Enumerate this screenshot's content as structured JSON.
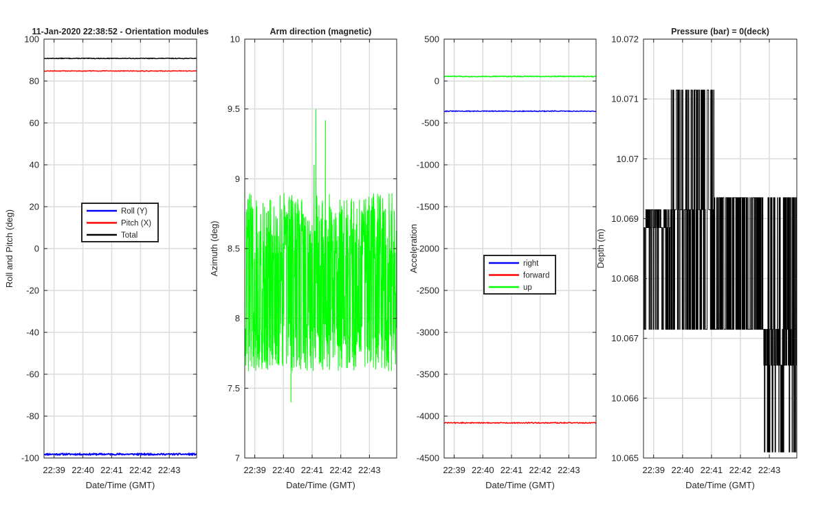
{
  "chart_data": [
    {
      "type": "line",
      "title": "11-Jan-2020 22:38:52 - Orientation modules",
      "xlabel": "Date/Time (GMT)",
      "ylabel": "Roll and Pitch (deg)",
      "xlim": [
        22.65,
        27.95
      ],
      "ylim": [
        -100,
        100
      ],
      "xticks": [
        {
          "v": 23,
          "label": "22:39"
        },
        {
          "v": 24,
          "label": "22:40"
        },
        {
          "v": 25,
          "label": "22:41"
        },
        {
          "v": 26,
          "label": "22:42"
        },
        {
          "v": 27,
          "label": "22:43"
        }
      ],
      "yticks": [
        {
          "v": -100,
          "label": "-100"
        },
        {
          "v": -80,
          "label": "-80"
        },
        {
          "v": -60,
          "label": "-60"
        },
        {
          "v": -40,
          "label": "-40"
        },
        {
          "v": -20,
          "label": "-20"
        },
        {
          "v": 0,
          "label": "0"
        },
        {
          "v": 20,
          "label": "20"
        },
        {
          "v": 40,
          "label": "40"
        },
        {
          "v": 60,
          "label": "60"
        },
        {
          "v": 80,
          "label": "80"
        },
        {
          "v": 100,
          "label": "100"
        }
      ],
      "grid": true,
      "legend": {
        "position": "center",
        "entries": [
          {
            "label": "Roll (Y)",
            "color": "#0000ff"
          },
          {
            "label": "Pitch (X)",
            "color": "#ff0000"
          },
          {
            "label": "Total",
            "color": "#000000"
          }
        ]
      },
      "series": [
        {
          "name": "Roll (Y)",
          "color": "#0000ff",
          "mode": "flat",
          "value": -98.2,
          "noise": 0.35,
          "seed": 11,
          "width": 2
        },
        {
          "name": "Pitch (X)",
          "color": "#ff0000",
          "mode": "flat",
          "value": 84.8,
          "noise": 0.15,
          "seed": 12,
          "width": 1.5
        },
        {
          "name": "Total",
          "color": "#000000",
          "mode": "flat",
          "value": 90.8,
          "noise": 0.15,
          "seed": 13,
          "width": 1.5
        }
      ]
    },
    {
      "type": "line",
      "title": "Arm direction (magnetic)",
      "xlabel": "Date/Time (GMT)",
      "ylabel": "Azimuth (deg)",
      "xlim": [
        22.65,
        27.95
      ],
      "ylim": [
        7,
        10
      ],
      "xticks": [
        {
          "v": 23,
          "label": "22:39"
        },
        {
          "v": 24,
          "label": "22:40"
        },
        {
          "v": 25,
          "label": "22:41"
        },
        {
          "v": 26,
          "label": "22:42"
        },
        {
          "v": 27,
          "label": "22:43"
        }
      ],
      "yticks": [
        {
          "v": 7,
          "label": "7"
        },
        {
          "v": 7.5,
          "label": "7.5"
        },
        {
          "v": 8,
          "label": "8"
        },
        {
          "v": 8.5,
          "label": "8.5"
        },
        {
          "v": 9,
          "label": "9"
        },
        {
          "v": 9.5,
          "label": "9.5"
        },
        {
          "v": 10,
          "label": "10"
        }
      ],
      "grid": true,
      "legend": null,
      "series": [
        {
          "name": "Azimuth",
          "color": "#00ff00",
          "mode": "noisy",
          "lo": 7.62,
          "hi": 8.9,
          "mid": 8.25,
          "spikes": [
            {
              "x": 25.12,
              "v": 9.5
            },
            {
              "x": 25.45,
              "v": 9.42
            },
            {
              "x": 24.25,
              "v": 7.4
            },
            {
              "x": 25.05,
              "v": 9.1
            }
          ],
          "n": 700,
          "seed": 21,
          "width": 1
        }
      ]
    },
    {
      "type": "line",
      "title": "",
      "xlabel": "Date/Time (GMT)",
      "ylabel": "Acceleration",
      "xlim": [
        22.65,
        27.95
      ],
      "ylim": [
        -4500,
        500
      ],
      "xticks": [
        {
          "v": 23,
          "label": "22:39"
        },
        {
          "v": 24,
          "label": "22:40"
        },
        {
          "v": 25,
          "label": "22:41"
        },
        {
          "v": 26,
          "label": "22:42"
        },
        {
          "v": 27,
          "label": "22:43"
        }
      ],
      "yticks": [
        {
          "v": -4500,
          "label": "-4500"
        },
        {
          "v": -4000,
          "label": "-4000"
        },
        {
          "v": -3500,
          "label": "-3500"
        },
        {
          "v": -3000,
          "label": "-3000"
        },
        {
          "v": -2500,
          "label": "-2500"
        },
        {
          "v": -2000,
          "label": "-2000"
        },
        {
          "v": -1500,
          "label": "-1500"
        },
        {
          "v": -1000,
          "label": "-1000"
        },
        {
          "v": -500,
          "label": "-500"
        },
        {
          "v": 0,
          "label": "0"
        },
        {
          "v": 500,
          "label": "500"
        }
      ],
      "grid": true,
      "legend": {
        "position": "center-right",
        "entries": [
          {
            "label": "right",
            "color": "#0000ff"
          },
          {
            "label": "forward",
            "color": "#ff0000"
          },
          {
            "label": "up",
            "color": "#00ff00"
          }
        ]
      },
      "series": [
        {
          "name": "right",
          "color": "#0000ff",
          "mode": "flat",
          "value": -360,
          "noise": 5,
          "seed": 31,
          "width": 1.5
        },
        {
          "name": "forward",
          "color": "#ff0000",
          "mode": "flat",
          "value": -4080,
          "noise": 6,
          "seed": 32,
          "width": 1.5
        },
        {
          "name": "up",
          "color": "#00ff00",
          "mode": "flat",
          "value": 55,
          "noise": 5,
          "seed": 33,
          "width": 1.5
        }
      ]
    },
    {
      "type": "line",
      "title": "Pressure (bar) = 0(deck)",
      "xlabel": "Date/Time (GMT)",
      "ylabel": "Depth (m)",
      "xlim": [
        22.65,
        27.95
      ],
      "ylim": [
        10.065,
        10.072
      ],
      "xticks": [
        {
          "v": 23,
          "label": "22:39"
        },
        {
          "v": 24,
          "label": "22:40"
        },
        {
          "v": 25,
          "label": "22:41"
        },
        {
          "v": 26,
          "label": "22:42"
        },
        {
          "v": 27,
          "label": "22:43"
        }
      ],
      "yticks": [
        {
          "v": 10.065,
          "label": "10.065"
        },
        {
          "v": 10.066,
          "label": "10.066"
        },
        {
          "v": 10.067,
          "label": "10.067"
        },
        {
          "v": 10.068,
          "label": "10.068"
        },
        {
          "v": 10.069,
          "label": "10.069"
        },
        {
          "v": 10.07,
          "label": "10.07"
        },
        {
          "v": 10.071,
          "label": "10.071"
        },
        {
          "v": 10.072,
          "label": "10.072"
        }
      ],
      "grid": true,
      "legend": null,
      "series": [
        {
          "name": "Depth",
          "color": "#000000",
          "mode": "steps",
          "seed": 41,
          "n": 520,
          "width": 1,
          "segments": [
            {
              "x0": 22.65,
              "x1": 23.6,
              "levels": [
                10.06715,
                10.06915,
                10.06885
              ]
            },
            {
              "x0": 23.6,
              "x1": 24.3,
              "levels": [
                10.06915,
                10.07115,
                10.06715
              ]
            },
            {
              "x0": 24.3,
              "x1": 25.1,
              "levels": [
                10.06715,
                10.07115,
                10.06915
              ]
            },
            {
              "x0": 25.1,
              "x1": 26.8,
              "levels": [
                10.06715,
                10.06935
              ]
            },
            {
              "x0": 26.8,
              "x1": 27.95,
              "levels": [
                10.06715,
                10.06935,
                10.0651,
                10.06655
              ]
            }
          ]
        }
      ]
    }
  ]
}
